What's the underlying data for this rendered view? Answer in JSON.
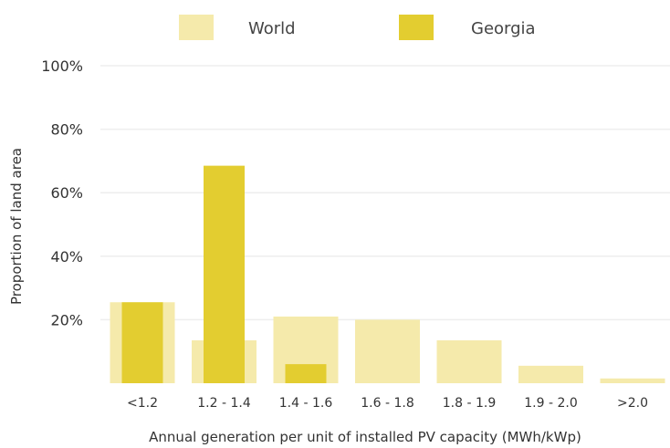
{
  "chart_data": {
    "type": "bar",
    "categories": [
      "<1.2",
      "1.2 - 1.4",
      "1.4 - 1.6",
      "1.6 - 1.8",
      "1.8 - 1.9",
      "1.9 - 2.0",
      ">2.0"
    ],
    "series": [
      {
        "name": "World",
        "color": "#f5eaab",
        "values": [
          25.5,
          13.5,
          21,
          20,
          13.5,
          5.5,
          1.5
        ]
      },
      {
        "name": "Georgia",
        "color": "#e3cd30",
        "values": [
          25.5,
          68.5,
          6,
          0,
          0,
          0,
          0
        ]
      }
    ],
    "xlabel": "Annual generation per unit of installed PV capacity (MWh/kWp)",
    "ylabel": "Proportion of land area",
    "ylim": [
      0,
      100
    ],
    "yticks": [
      20,
      40,
      60,
      80,
      100
    ],
    "ytick_labels": [
      "20%",
      "40%",
      "60%",
      "80%",
      "100%"
    ],
    "grid": true,
    "legend_position": "top-center"
  }
}
